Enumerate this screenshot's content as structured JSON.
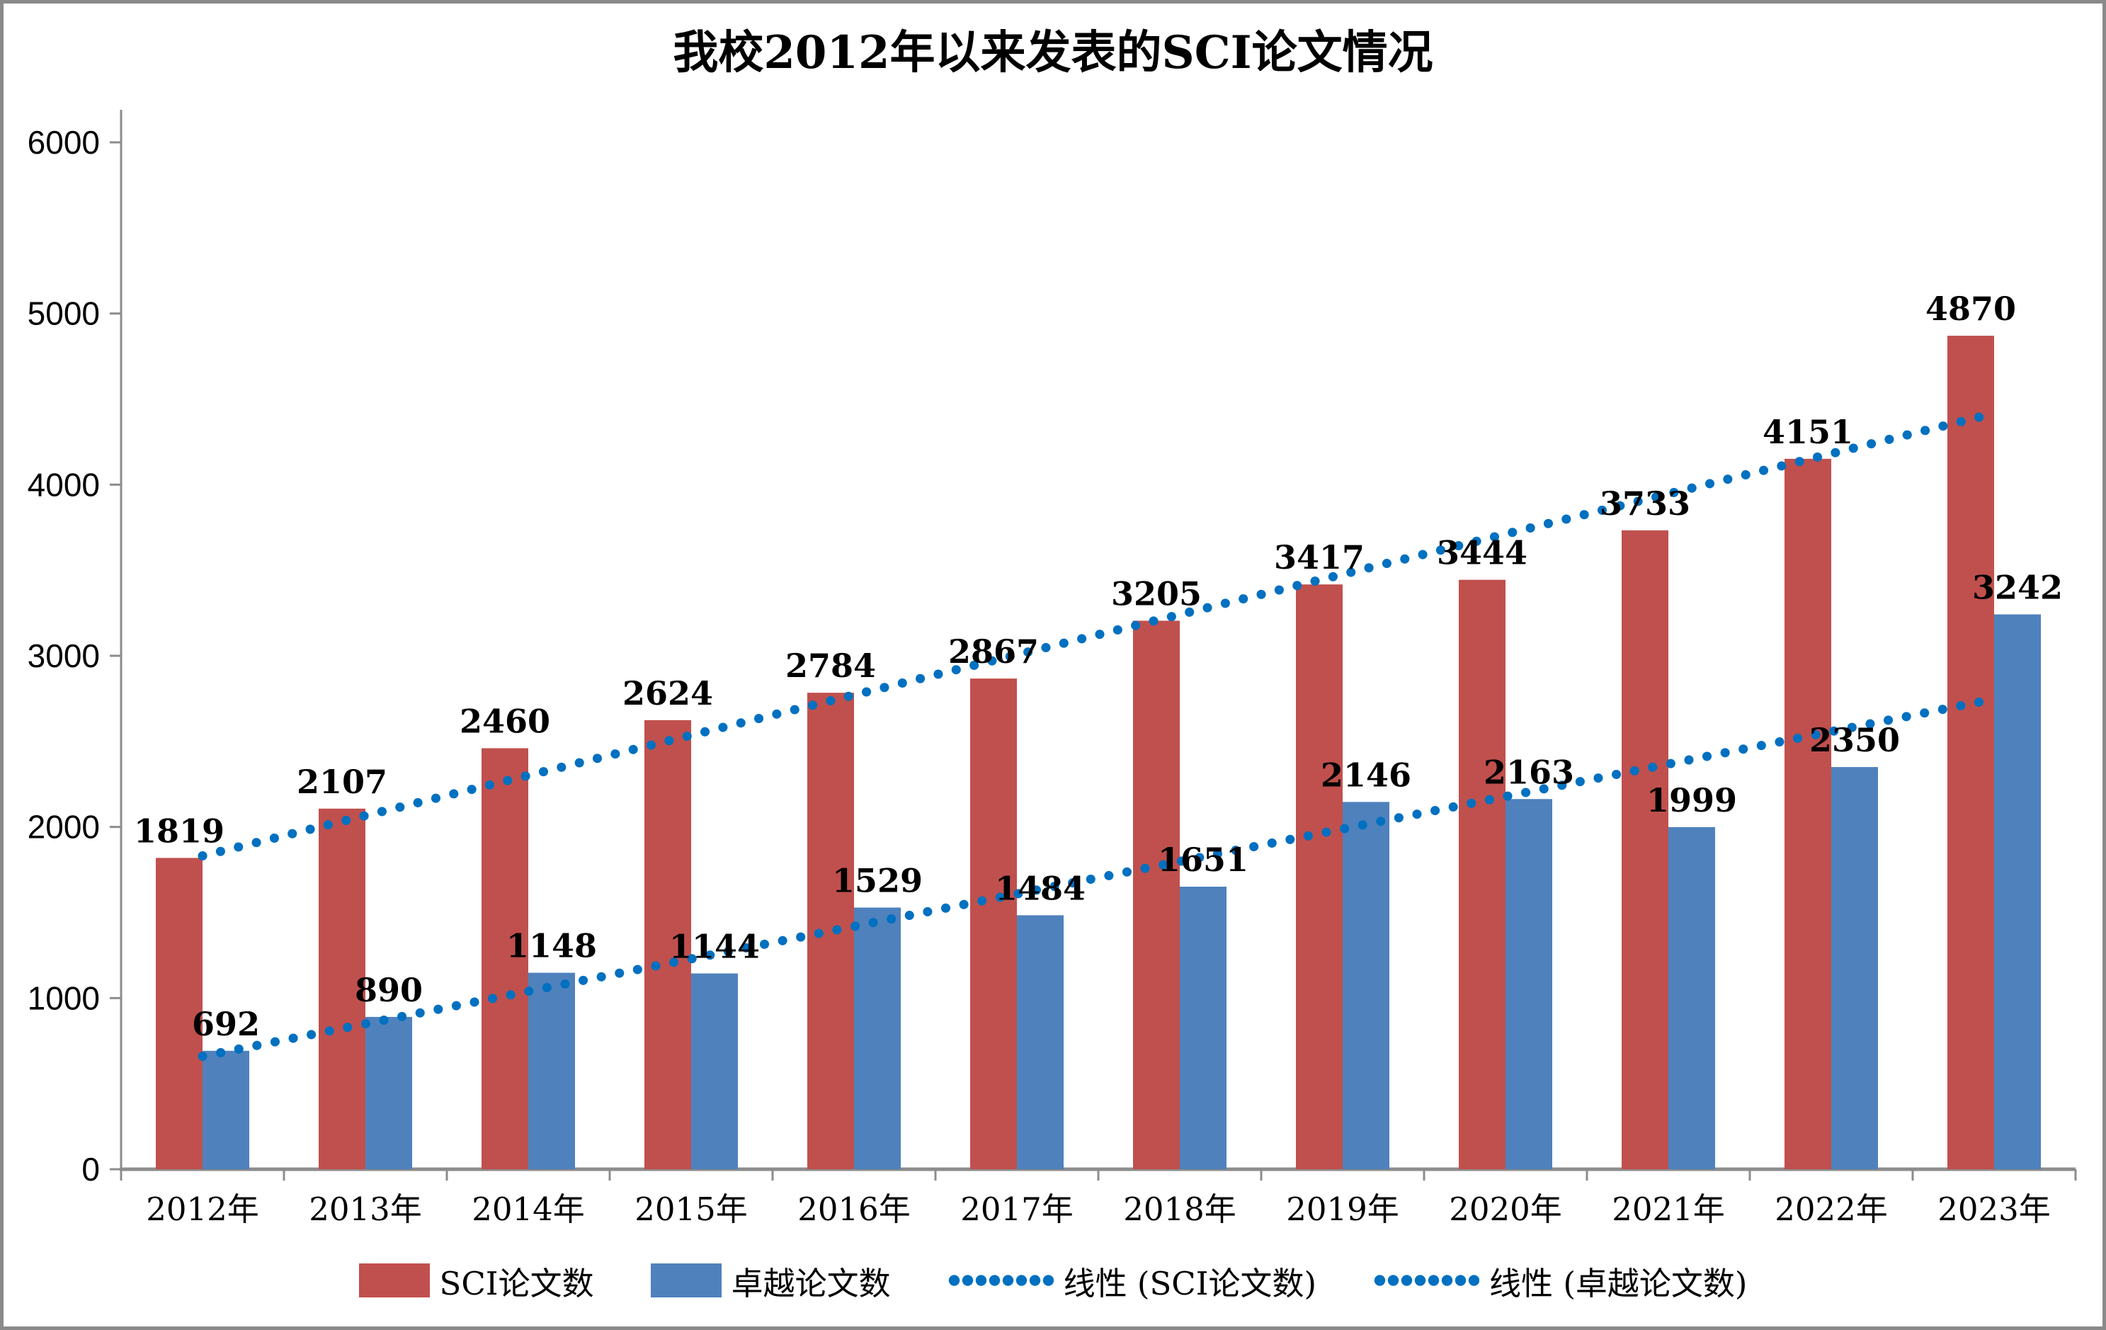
{
  "title": "我校2012年以来发表的SCI论文情况",
  "chart_data": {
    "type": "bar",
    "categories": [
      "2012年",
      "2013年",
      "2014年",
      "2015年",
      "2016年",
      "2017年",
      "2018年",
      "2019年",
      "2020年",
      "2021年",
      "2022年",
      "2023年"
    ],
    "series": [
      {
        "name": "SCI论文数",
        "color": "#C0504D",
        "values": [
          1819,
          2107,
          2460,
          2624,
          2784,
          2867,
          3205,
          3417,
          3444,
          3733,
          4151,
          4870
        ]
      },
      {
        "name": "卓越论文数",
        "color": "#4F81BD",
        "values": [
          692,
          890,
          1148,
          1144,
          1529,
          1484,
          1651,
          2146,
          2163,
          1999,
          2350,
          3242
        ]
      }
    ],
    "trendlines": [
      {
        "name": "线性 (SCI论文数)",
        "of_series": "SCI论文数",
        "color": "#0070C0",
        "start_value": 1831,
        "end_value": 4416
      },
      {
        "name": "线性 (卓越论文数)",
        "of_series": "卓越论文数",
        "color": "#0070C0",
        "start_value": 660,
        "end_value": 2747
      }
    ],
    "title": "我校2012年以来发表的SCI论文情况",
    "xlabel": "",
    "ylabel": "",
    "ylim": [
      0,
      6000
    ],
    "y_tick_step": 1000,
    "y_tick_labels": [
      "0",
      "1000",
      "2000",
      "3000",
      "4000",
      "5000",
      "6000"
    ],
    "grid": false,
    "data_labels": true,
    "legend_position": "bottom",
    "axis_color": "#8c8c8c",
    "label_color": "#000000"
  },
  "legend": {
    "items": [
      {
        "label": "SCI论文数",
        "swatch": "bar",
        "color": "#C0504D"
      },
      {
        "label": "卓越论文数",
        "swatch": "bar",
        "color": "#4F81BD"
      },
      {
        "label": "线性 (SCI论文数)",
        "swatch": "dotted-line",
        "color": "#0070C0"
      },
      {
        "label": "线性 (卓越论文数)",
        "swatch": "dotted-line",
        "color": "#0070C0"
      }
    ]
  }
}
